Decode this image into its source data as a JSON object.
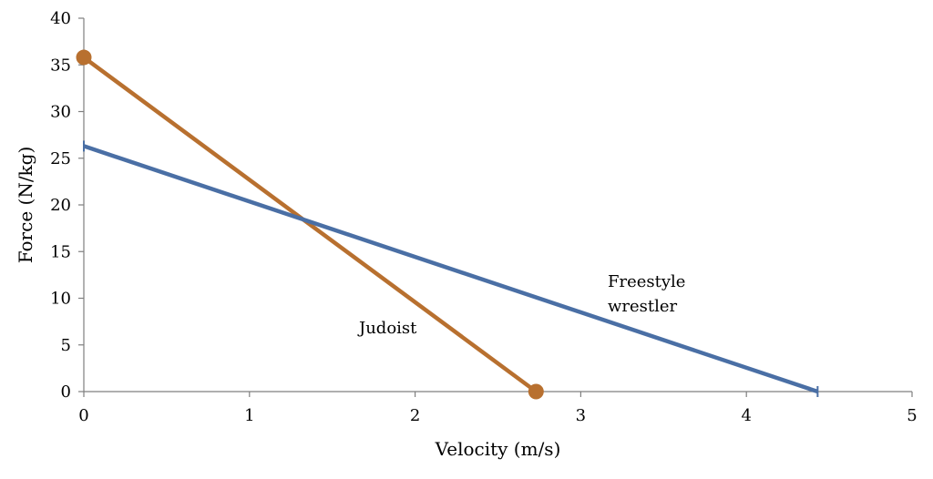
{
  "chart_data": {
    "type": "line",
    "xlabel": "Velocity (m/s)",
    "ylabel": "Force (N/kg)",
    "xlim": [
      0,
      5
    ],
    "ylim": [
      0,
      40
    ],
    "x_ticks": [
      "0",
      "1",
      "2",
      "3",
      "4",
      "5"
    ],
    "y_ticks": [
      "0",
      "5",
      "10",
      "15",
      "20",
      "25",
      "30",
      "35",
      "40"
    ],
    "grid": false,
    "legend": "none",
    "series": [
      {
        "name": "Judoist",
        "x": [
          0,
          2.73
        ],
        "y": [
          35.8,
          0
        ],
        "color": "#B8702F",
        "marker": "circle"
      },
      {
        "name": "Freestyle wrestler",
        "x": [
          0,
          4.43
        ],
        "y": [
          26.3,
          0
        ],
        "color": "#4A6FA5",
        "marker": "tick"
      }
    ],
    "annotations": [
      {
        "series": "Judoist",
        "lines": [
          "Judoist"
        ]
      },
      {
        "series": "Freestyle wrestler",
        "lines": [
          "Freestyle",
          "wrestler"
        ]
      }
    ]
  }
}
